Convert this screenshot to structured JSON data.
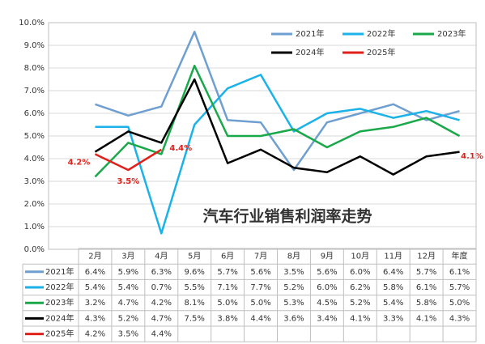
{
  "chart_data": {
    "type": "line",
    "title": "汽车行业销售利润率走势",
    "categories": [
      "2月",
      "3月",
      "4月",
      "5月",
      "6月",
      "7月",
      "8月",
      "9月",
      "10月",
      "11月",
      "12月",
      "年度"
    ],
    "ylim": [
      0,
      10
    ],
    "yticks": [
      {
        "value": 0,
        "label": "0.0%"
      },
      {
        "value": 1,
        "label": "1.0%"
      },
      {
        "value": 2,
        "label": "2.0%"
      },
      {
        "value": 3,
        "label": "3.0%"
      },
      {
        "value": 4,
        "label": "4.0%"
      },
      {
        "value": 5,
        "label": "5.0%"
      },
      {
        "value": 6,
        "label": "6.0%"
      },
      {
        "value": 7,
        "label": "7.0%"
      },
      {
        "value": 8,
        "label": "8.0%"
      },
      {
        "value": 9,
        "label": "9.0%"
      },
      {
        "value": 10,
        "label": "10.0%"
      }
    ],
    "grid": true,
    "legend": "top-right",
    "series": [
      {
        "name": "2021年",
        "color": "#6f9fd0",
        "values": [
          6.4,
          5.9,
          6.3,
          9.6,
          5.7,
          5.6,
          3.5,
          5.6,
          6.0,
          6.4,
          5.7,
          6.1
        ],
        "value_labels": [
          "6.4%",
          "5.9%",
          "6.3%",
          "9.6%",
          "5.7%",
          "5.6%",
          "3.5%",
          "5.6%",
          "6.0%",
          "6.4%",
          "5.7%",
          "6.1%"
        ]
      },
      {
        "name": "2022年",
        "color": "#1ab2e8",
        "values": [
          5.4,
          5.4,
          0.7,
          5.5,
          7.1,
          7.7,
          5.2,
          6.0,
          6.2,
          5.8,
          6.1,
          5.7
        ],
        "value_labels": [
          "5.4%",
          "5.4%",
          "0.7%",
          "5.5%",
          "7.1%",
          "7.7%",
          "5.2%",
          "6.0%",
          "6.2%",
          "5.8%",
          "6.1%",
          "5.7%"
        ]
      },
      {
        "name": "2023年",
        "color": "#19a84a",
        "values": [
          3.2,
          4.7,
          4.2,
          8.1,
          5.0,
          5.0,
          5.3,
          4.5,
          5.2,
          5.4,
          5.8,
          5.0
        ],
        "value_labels": [
          "3.2%",
          "4.7%",
          "4.2%",
          "8.1%",
          "5.0%",
          "5.0%",
          "5.3%",
          "4.5%",
          "5.2%",
          "5.4%",
          "5.8%",
          "5.0%"
        ]
      },
      {
        "name": "2024年",
        "color": "#000000",
        "values": [
          4.3,
          5.2,
          4.7,
          7.5,
          3.8,
          4.4,
          3.6,
          3.4,
          4.1,
          3.3,
          4.1,
          4.3
        ],
        "value_labels": [
          "4.3%",
          "5.2%",
          "4.7%",
          "7.5%",
          "3.8%",
          "4.4%",
          "3.6%",
          "3.4%",
          "4.1%",
          "3.3%",
          "4.1%",
          "4.3%"
        ]
      },
      {
        "name": "2025年",
        "color": "#e0201a",
        "values": [
          4.2,
          3.5,
          4.4,
          null,
          null,
          null,
          null,
          null,
          null,
          null,
          null,
          null
        ],
        "value_labels": [
          "4.2%",
          "3.5%",
          "4.4%",
          null,
          null,
          null,
          null,
          null,
          null,
          null,
          null,
          null
        ]
      }
    ],
    "annotations": [
      "4.1%"
    ]
  }
}
